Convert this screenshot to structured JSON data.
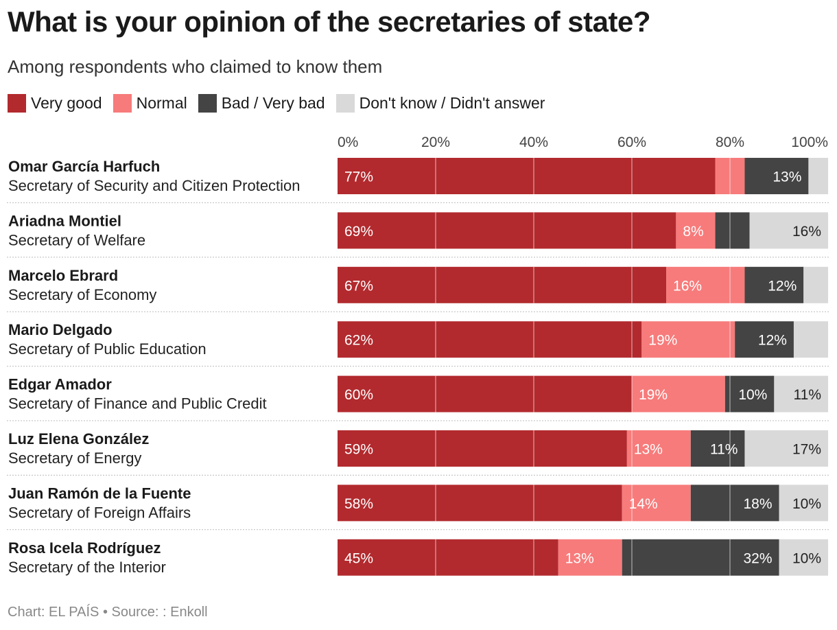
{
  "title": "What is your opinion of the secretaries of state?",
  "subtitle": "Among respondents who claimed to know them",
  "footer": "Chart: EL PAÍS • Source: : Enkoll",
  "chart_data": {
    "type": "bar",
    "orientation": "horizontal",
    "stacked": true,
    "xlim": [
      0,
      100
    ],
    "x_ticks": [
      "0%",
      "20%",
      "40%",
      "60%",
      "80%",
      "100%"
    ],
    "legend_position": "top",
    "series": [
      {
        "name": "Very good",
        "color": "#b22a2e",
        "values": [
          77,
          69,
          67,
          62,
          60,
          59,
          58,
          45
        ],
        "labels": [
          "77%",
          "69%",
          "67%",
          "62%",
          "60%",
          "59%",
          "58%",
          "45%"
        ]
      },
      {
        "name": "Normal",
        "color": "#f77b7b",
        "values": [
          6,
          8,
          16,
          19,
          19,
          13,
          14,
          13
        ],
        "labels": [
          null,
          "8%",
          "16%",
          "19%",
          "19%",
          "13%",
          "14%",
          "13%"
        ]
      },
      {
        "name": "Bad / Very bad",
        "color": "#444444",
        "values": [
          13,
          7,
          12,
          12,
          10,
          11,
          18,
          32
        ],
        "labels": [
          "13%",
          null,
          "12%",
          "12%",
          "10%",
          "11%",
          "18%",
          "32%"
        ]
      },
      {
        "name": "Don't know / Didn't answer",
        "color": "#d9d9d9",
        "values": [
          4,
          16,
          5,
          7,
          11,
          17,
          10,
          10
        ],
        "labels": [
          null,
          "16%",
          null,
          null,
          "11%",
          "17%",
          "10%",
          "10%"
        ]
      }
    ],
    "categories": [
      {
        "name": "Omar García Harfuch",
        "role": "Secretary of Security and Citizen Protection"
      },
      {
        "name": "Ariadna Montiel",
        "role": "Secretary of Welfare"
      },
      {
        "name": "Marcelo Ebrard",
        "role": "Secretary of Economy"
      },
      {
        "name": "Mario Delgado",
        "role": "Secretary of Public Education"
      },
      {
        "name": "Edgar Amador",
        "role": "Secretary of Finance and Public Credit"
      },
      {
        "name": "Luz Elena González",
        "role": "Secretary of Energy"
      },
      {
        "name": "Juan Ramón de la Fuente",
        "role": "Secretary of Foreign Affairs"
      },
      {
        "name": "Rosa Icela Rodríguez",
        "role": "Secretary of the Interior"
      }
    ]
  }
}
